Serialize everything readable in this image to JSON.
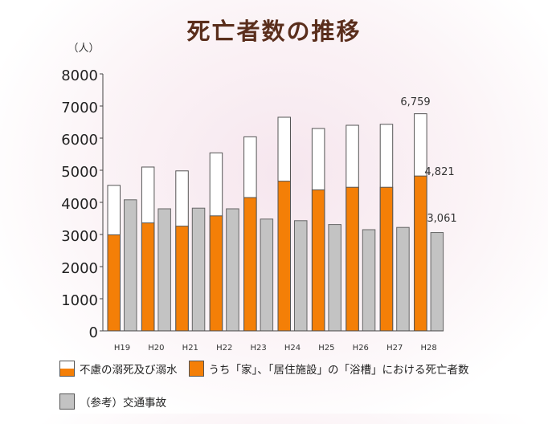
{
  "title": "死亡者数の推移",
  "chart_data": {
    "type": "bar",
    "ylabel": "（人）",
    "ylim": [
      0,
      8000
    ],
    "yticks": [
      "0",
      "1000",
      "2000",
      "3000",
      "4000",
      "5000",
      "6000",
      "7000",
      "8000"
    ],
    "categories": [
      "H19",
      "H20",
      "H21",
      "H22",
      "H23",
      "H24",
      "H25",
      "H26",
      "H27",
      "H28"
    ],
    "series": [
      {
        "name": "不慮の溺死及び溺水",
        "values": [
          4530,
          5100,
          4980,
          5540,
          6040,
          6650,
          6300,
          6400,
          6430,
          6759
        ],
        "color": "#ffffff"
      },
      {
        "name": "うち「家」、「居住施設」の「浴槽」における死亡者数",
        "values": [
          2990,
          3360,
          3260,
          3580,
          4150,
          4660,
          4390,
          4470,
          4470,
          4821
        ],
        "color": "#f47f07"
      },
      {
        "name": "（参考）交通事故",
        "values": [
          4080,
          3800,
          3820,
          3800,
          3480,
          3430,
          3310,
          3150,
          3220,
          3061
        ],
        "color": "#c3c3c3"
      }
    ],
    "data_labels": {
      "total": "6,759",
      "bath": "4,821",
      "traffic": "3,061"
    },
    "grid": false,
    "legend_position": "bottom"
  },
  "legend": {
    "drowning": "不慮の溺死及び溺水",
    "bath": "うち「家」、「居住施設」の「浴槽」における死亡者数",
    "traffic": "（参考）交通事故"
  }
}
